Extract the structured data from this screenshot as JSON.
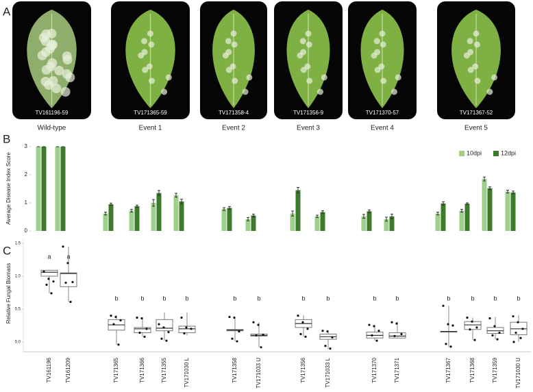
{
  "panel_a": {
    "label": "A",
    "leaves": [
      {
        "code": "TV161196-59",
        "caption": "Wild-type"
      },
      {
        "code": "TV171365-59",
        "caption": "Event 1"
      },
      {
        "code": "TV171358-4",
        "caption": "Event 2"
      },
      {
        "code": "TV171356-9",
        "caption": "Event 3"
      },
      {
        "code": "TV171370-57",
        "caption": "Event 4"
      },
      {
        "code": "TV171367-52",
        "caption": "Event 5"
      }
    ]
  },
  "chart_data": [
    {
      "type": "bar",
      "label": "B",
      "ylabel": "Average Disease Index Score",
      "ylim": [
        0,
        3
      ],
      "yticks": [
        0,
        1,
        2,
        3
      ],
      "legend": "top-right",
      "series": [
        {
          "name": "10dpi",
          "color": "#9dd08a",
          "values": [
            3,
            3,
            0.62,
            0.72,
            1.0,
            1.27,
            0.78,
            0.42,
            0.62,
            0.52,
            0.52,
            0.42,
            0.62,
            0.72,
            1.85,
            1.4
          ],
          "errors": [
            0,
            0,
            0.05,
            0.05,
            0.12,
            0.07,
            0.05,
            0.06,
            0.09,
            0.04,
            0.07,
            0.07,
            0.05,
            0.05,
            0.07,
            0.05
          ]
        },
        {
          "name": "12dpi",
          "color": "#3d7a2c",
          "values": [
            3,
            3,
            0.95,
            0.88,
            1.35,
            1.05,
            0.82,
            0.55,
            1.45,
            0.67,
            0.7,
            0.52,
            0.98,
            0.97,
            1.52,
            1.37
          ],
          "errors": [
            0,
            0,
            0.04,
            0.04,
            0.09,
            0.08,
            0.05,
            0.05,
            0.1,
            0.05,
            0.05,
            0.08,
            0.06,
            0.03,
            0.05,
            0.05
          ]
        }
      ]
    },
    {
      "type": "box",
      "label": "C",
      "ylabel": "Relative Fungal Biomass",
      "ylim": [
        -0.15,
        1.55
      ],
      "yticks": [
        {
          "value": 0,
          "label": "0.0"
        },
        0.5,
        {
          "value": 1,
          "label": "1.0"
        },
        1.5
      ],
      "categories": [
        "TV161196",
        "TV161209",
        "TV171365",
        "TV171366",
        "TV171355",
        "TV171030 L",
        "TV171358",
        "TV171033 U",
        "TV171356",
        "TV171033 L",
        "TV171370",
        "TV171371",
        "TV171367",
        "TV171368",
        "TV171359",
        "TV171030 U"
      ],
      "letters": [
        "a",
        "a",
        "b",
        "b",
        "b",
        "b",
        "b",
        "b",
        "b",
        "b",
        "b",
        "b",
        "b",
        "b",
        "b",
        "b"
      ],
      "boxes": [
        {
          "min": 0.74,
          "q1": 1.0,
          "median": 1.06,
          "q3": 1.09,
          "max": 1.09,
          "points": [
            1.07,
            0.96,
            0.92,
            0.87,
            0.74
          ]
        },
        {
          "min": 0.61,
          "q1": 0.84,
          "median": 1.04,
          "q3": 1.05,
          "max": 1.45,
          "points": [
            1.45,
            1.2,
            0.91,
            0.9,
            0.61
          ]
        },
        {
          "min": -0.04,
          "q1": 0.18,
          "median": 0.26,
          "q3": 0.34,
          "max": 0.41,
          "points": [
            0.4,
            0.38,
            0.33,
            0.27,
            -0.04
          ]
        },
        {
          "min": 0.08,
          "q1": 0.14,
          "median": 0.2,
          "q3": 0.22,
          "max": 0.37,
          "points": [
            0.37,
            0.36,
            0.2,
            0.14,
            0.08
          ]
        },
        {
          "min": 0.02,
          "q1": 0.17,
          "median": 0.21,
          "q3": 0.34,
          "max": 0.45,
          "points": [
            0.27,
            0.22,
            0.15,
            0.05,
            0.02
          ]
        },
        {
          "min": 0.1,
          "q1": 0.14,
          "median": 0.2,
          "q3": 0.24,
          "max": 0.45,
          "points": [
            0.37,
            0.22,
            0.2,
            0.13
          ]
        },
        {
          "min": 0.01,
          "q1": 0.17,
          "median": 0.18,
          "q3": 0.19,
          "max": 0.38,
          "points": [
            0.38,
            0.37,
            0.16,
            0.05,
            0.01
          ]
        },
        {
          "min": -0.08,
          "q1": 0.09,
          "median": 0.1,
          "q3": 0.12,
          "max": 0.3,
          "points": [
            0.3,
            0.26,
            0.11,
            0.1,
            -0.08
          ]
        },
        {
          "min": 0.08,
          "q1": 0.22,
          "median": 0.28,
          "q3": 0.34,
          "max": 0.41,
          "points": [
            0.4,
            0.3,
            0.2,
            0.12,
            0.08
          ]
        },
        {
          "min": -0.11,
          "q1": 0.04,
          "median": 0.08,
          "q3": 0.12,
          "max": 0.18,
          "points": [
            0.17,
            0.16,
            0.07,
            -0.06,
            -0.1
          ]
        },
        {
          "min": 0.02,
          "q1": 0.06,
          "median": 0.1,
          "q3": 0.15,
          "max": 0.26,
          "points": [
            0.26,
            0.24,
            0.17,
            0.1,
            0.02
          ]
        },
        {
          "min": 0.05,
          "q1": 0.06,
          "median": 0.09,
          "q3": 0.14,
          "max": 0.31,
          "points": [
            0.3,
            0.28,
            0.12,
            0.09
          ]
        },
        {
          "min": -0.08,
          "q1": 0.15,
          "median": 0.16,
          "q3": 0.16,
          "max": 0.55,
          "points": [
            0.55,
            0.27,
            0.25,
            -0.03,
            -0.07
          ]
        },
        {
          "min": 0.03,
          "q1": 0.19,
          "median": 0.26,
          "q3": 0.31,
          "max": 0.37,
          "points": [
            0.37,
            0.31,
            0.22,
            0.19,
            0.03
          ]
        },
        {
          "min": 0.04,
          "q1": 0.13,
          "median": 0.17,
          "q3": 0.22,
          "max": 0.38,
          "points": [
            0.36,
            0.24,
            0.14,
            0.1,
            0.04
          ]
        },
        {
          "min": 0,
          "q1": 0.11,
          "median": 0.2,
          "q3": 0.3,
          "max": 0.41,
          "points": [
            0.39,
            0.3,
            0.2,
            0.14,
            0.06,
            0
          ]
        }
      ]
    }
  ]
}
